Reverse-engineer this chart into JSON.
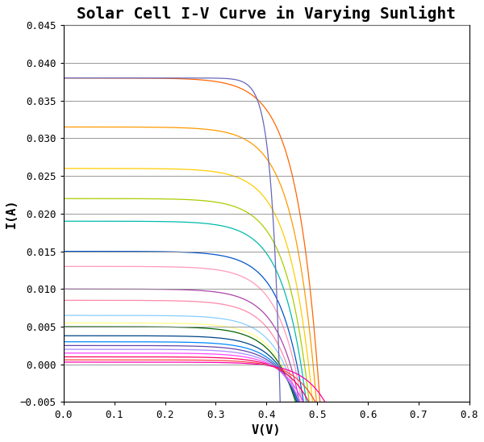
{
  "title": "Solar Cell I-V Curve in Varying Sunlight",
  "xlabel": "V(V)",
  "ylabel": "I(A)",
  "xlim": [
    0,
    0.8
  ],
  "ylim": [
    -0.005,
    0.045
  ],
  "xticks": [
    0,
    0.1,
    0.2,
    0.3,
    0.4,
    0.5,
    0.6,
    0.7,
    0.8
  ],
  "yticks": [
    -0.005,
    0,
    0.005,
    0.01,
    0.015,
    0.02,
    0.025,
    0.03,
    0.035,
    0.04,
    0.045
  ],
  "background_color": "#ffffff",
  "grid_color": "#888888",
  "curves": [
    {
      "Isc": 0.038,
      "Voc": 0.5,
      "color": "#FF6600"
    },
    {
      "Isc": 0.0315,
      "Voc": 0.492,
      "color": "#FF9900"
    },
    {
      "Isc": 0.026,
      "Voc": 0.483,
      "color": "#FFCC00"
    },
    {
      "Isc": 0.022,
      "Voc": 0.475,
      "color": "#AACC00"
    },
    {
      "Isc": 0.019,
      "Voc": 0.468,
      "color": "#00BBAA"
    },
    {
      "Isc": 0.015,
      "Voc": 0.46,
      "color": "#0055CC"
    },
    {
      "Isc": 0.013,
      "Voc": 0.455,
      "color": "#FF99BB"
    },
    {
      "Isc": 0.01,
      "Voc": 0.447,
      "color": "#AA44AA"
    },
    {
      "Isc": 0.0085,
      "Voc": 0.44,
      "color": "#FF88AA"
    },
    {
      "Isc": 0.0065,
      "Voc": 0.435,
      "color": "#88CCFF"
    },
    {
      "Isc": 0.0055,
      "Voc": 0.43,
      "color": "#FFFF88"
    },
    {
      "Isc": 0.005,
      "Voc": 0.426,
      "color": "#006600"
    },
    {
      "Isc": 0.0038,
      "Voc": 0.422,
      "color": "#004488"
    },
    {
      "Isc": 0.003,
      "Voc": 0.418,
      "color": "#0088FF"
    },
    {
      "Isc": 0.0025,
      "Voc": 0.414,
      "color": "#6644AA"
    },
    {
      "Isc": 0.002,
      "Voc": 0.41,
      "color": "#AA88FF"
    },
    {
      "Isc": 0.0015,
      "Voc": 0.406,
      "color": "#FF44FF"
    },
    {
      "Isc": 0.001,
      "Voc": 0.402,
      "color": "#FF0066"
    },
    {
      "Isc": 0.0006,
      "Voc": 0.395,
      "color": "#FF4444"
    },
    {
      "Isc": 0.0003,
      "Voc": 0.385,
      "color": "#FF00AA"
    }
  ],
  "purple_curve": {
    "Isc": 0.038,
    "Voc": 0.425,
    "color": "#6666BB"
  },
  "title_fontsize": 14,
  "label_fontsize": 11,
  "tick_fontsize": 9
}
